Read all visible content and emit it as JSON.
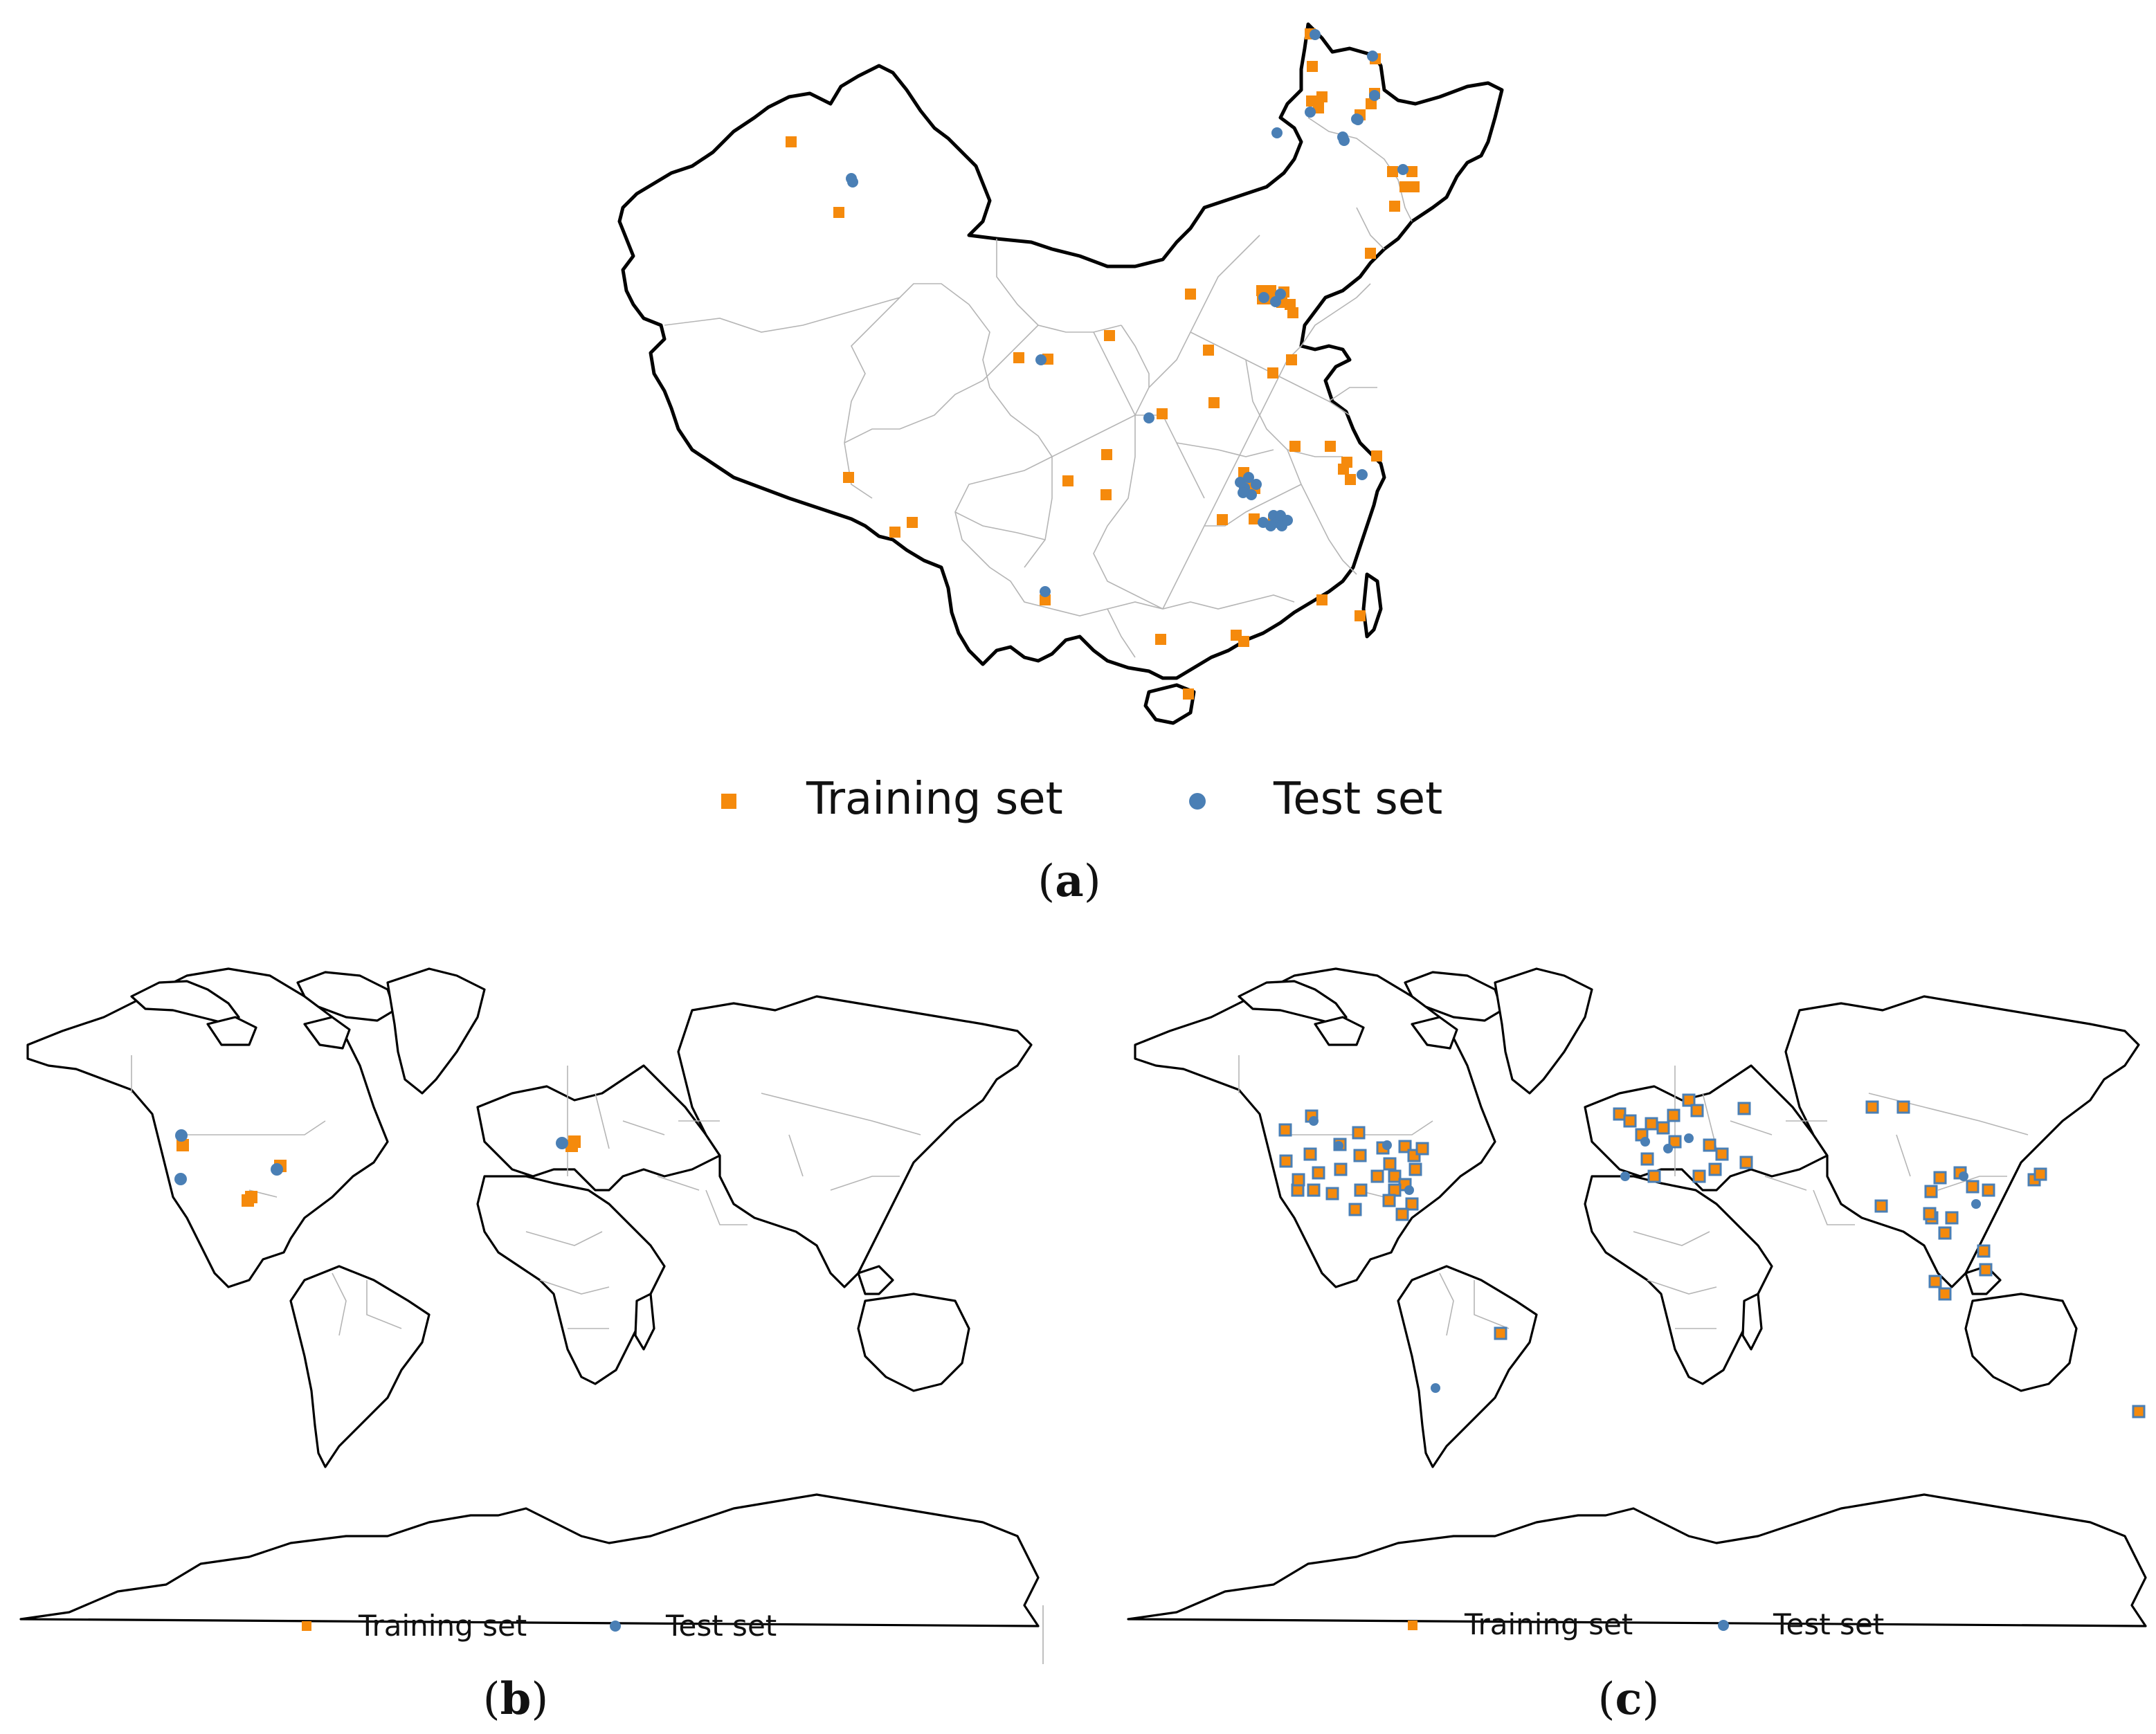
{
  "colors": {
    "training": "#f58a0c",
    "test": "#4a7fb5",
    "coast": "#000000",
    "border": "#b5b5b5"
  },
  "panels": [
    {
      "id": "a",
      "caption": "a",
      "legend": {
        "training_label": "Training set",
        "test_label": "Test set",
        "training_marker": "square",
        "test_marker": "circle"
      },
      "training": [
        [
          1143,
          205
        ],
        [
          1212,
          307
        ],
        [
          1893,
          49
        ],
        [
          1896,
          96
        ],
        [
          1895,
          146
        ],
        [
          1905,
          156
        ],
        [
          1910,
          140
        ],
        [
          1987,
          85
        ],
        [
          1965,
          166
        ],
        [
          1981,
          150
        ],
        [
          1986,
          135
        ],
        [
          2012,
          248
        ],
        [
          2040,
          248
        ],
        [
          2030,
          270
        ],
        [
          2043,
          270
        ],
        [
          2015,
          298
        ],
        [
          1980,
          366
        ],
        [
          1720,
          425
        ],
        [
          1823,
          420
        ],
        [
          1824,
          432
        ],
        [
          1836,
          420
        ],
        [
          1840,
          432
        ],
        [
          1855,
          422
        ],
        [
          1852,
          437
        ],
        [
          1868,
          452
        ],
        [
          1864,
          440
        ],
        [
          1603,
          485
        ],
        [
          1472,
          517
        ],
        [
          1514,
          519
        ],
        [
          1746,
          506
        ],
        [
          1866,
          520
        ],
        [
          1839,
          539
        ],
        [
          1754,
          582
        ],
        [
          1679,
          598
        ],
        [
          1871,
          645
        ],
        [
          1922,
          645
        ],
        [
          1946,
          668
        ],
        [
          1941,
          678
        ],
        [
          1951,
          693
        ],
        [
          1989,
          659
        ],
        [
          1599,
          657
        ],
        [
          1797,
          683
        ],
        [
          1803,
          698
        ],
        [
          1813,
          706
        ],
        [
          1543,
          695
        ],
        [
          1598,
          715
        ],
        [
          1226,
          690
        ],
        [
          1318,
          755
        ],
        [
          1293,
          769
        ],
        [
          1766,
          751
        ],
        [
          1812,
          750
        ],
        [
          1840,
          752
        ],
        [
          1510,
          867
        ],
        [
          1677,
          924
        ],
        [
          1786,
          918
        ],
        [
          1797,
          927
        ],
        [
          1910,
          867
        ],
        [
          1965,
          890
        ],
        [
          1717,
          1003
        ]
      ],
      "test": [
        [
          1900,
          50
        ],
        [
          1983,
          81
        ],
        [
          1986,
          138
        ],
        [
          1893,
          162
        ],
        [
          1962,
          173
        ],
        [
          1845,
          192
        ],
        [
          1940,
          198
        ],
        [
          1942,
          203
        ],
        [
          1960,
          172
        ],
        [
          2027,
          245
        ],
        [
          1230,
          258
        ],
        [
          1232,
          263
        ],
        [
          1826,
          430
        ],
        [
          1843,
          436
        ],
        [
          1850,
          425
        ],
        [
          1504,
          520
        ],
        [
          1660,
          604
        ],
        [
          1792,
          697
        ],
        [
          1798,
          705
        ],
        [
          1808,
          715
        ],
        [
          1796,
          712
        ],
        [
          1815,
          700
        ],
        [
          1804,
          690
        ],
        [
          1840,
          745
        ],
        [
          1845,
          755
        ],
        [
          1852,
          760
        ],
        [
          1836,
          760
        ],
        [
          1860,
          752
        ],
        [
          1825,
          755
        ],
        [
          1850,
          745
        ],
        [
          1968,
          686
        ],
        [
          1510,
          855
        ]
      ]
    },
    {
      "id": "b",
      "caption": "b",
      "legend": {
        "training_label": "Training set",
        "test_label": "Test set",
        "training_marker": "square",
        "test_marker": "circle"
      },
      "training": [
        [
          264,
          1655
        ],
        [
          405,
          1685
        ],
        [
          358,
          1735
        ],
        [
          363,
          1730
        ],
        [
          830,
          1650
        ],
        [
          826,
          1656
        ]
      ],
      "test": [
        [
          262,
          1641
        ],
        [
          261,
          1704
        ],
        [
          400,
          1690
        ],
        [
          812,
          1652
        ]
      ]
    },
    {
      "id": "c",
      "caption": "c",
      "legend": {
        "training_label": "Training set",
        "test_label": "Test set",
        "training_marker": "square",
        "test_marker": "circle"
      },
      "training": [
        [
          1857,
          1633
        ],
        [
          1895,
          1613
        ],
        [
          1893,
          1668
        ],
        [
          1936,
          1654
        ],
        [
          1963,
          1637
        ],
        [
          1858,
          1678
        ],
        [
          1905,
          1695
        ],
        [
          1937,
          1690
        ],
        [
          1965,
          1670
        ],
        [
          1998,
          1659
        ],
        [
          1966,
          1720
        ],
        [
          2008,
          1682
        ],
        [
          2030,
          1657
        ],
        [
          2043,
          1670
        ],
        [
          2055,
          1660
        ],
        [
          1990,
          1700
        ],
        [
          2015,
          1700
        ],
        [
          2030,
          1712
        ],
        [
          2045,
          1690
        ],
        [
          2015,
          1720
        ],
        [
          2040,
          1740
        ],
        [
          2026,
          1755
        ],
        [
          1958,
          1748
        ],
        [
          2007,
          1735
        ],
        [
          1875,
          1720
        ],
        [
          1898,
          1720
        ],
        [
          1925,
          1725
        ],
        [
          1876,
          1705
        ],
        [
          2340,
          1610
        ],
        [
          2355,
          1620
        ],
        [
          2372,
          1640
        ],
        [
          2386,
          1624
        ],
        [
          2403,
          1630
        ],
        [
          2418,
          1612
        ],
        [
          2440,
          1590
        ],
        [
          2452,
          1605
        ],
        [
          2420,
          1650
        ],
        [
          2380,
          1675
        ],
        [
          2470,
          1655
        ],
        [
          2488,
          1668
        ],
        [
          2520,
          1602
        ],
        [
          2390,
          1700
        ],
        [
          2455,
          1700
        ],
        [
          2478,
          1690
        ],
        [
          2523,
          1680
        ],
        [
          2705,
          1600
        ],
        [
          2750,
          1600
        ],
        [
          2718,
          1743
        ],
        [
          2790,
          1722
        ],
        [
          2803,
          1702
        ],
        [
          2832,
          1695
        ],
        [
          2850,
          1715
        ],
        [
          2791,
          1760
        ],
        [
          2820,
          1760
        ],
        [
          2873,
          1720
        ],
        [
          2939,
          1705
        ],
        [
          2948,
          1697
        ],
        [
          2788,
          1754
        ],
        [
          2810,
          1782
        ],
        [
          2866,
          1808
        ],
        [
          2869,
          1835
        ],
        [
          2796,
          1852
        ],
        [
          2810,
          1870
        ],
        [
          2168,
          1927
        ],
        [
          3090,
          2040
        ]
      ],
      "test": [
        [
          1898,
          1620
        ],
        [
          1934,
          1656
        ],
        [
          2004,
          1655
        ],
        [
          2036,
          1720
        ],
        [
          2377,
          1650
        ],
        [
          2410,
          1660
        ],
        [
          2440,
          1645
        ],
        [
          2837,
          1700
        ],
        [
          2855,
          1740
        ],
        [
          2074,
          2006
        ],
        [
          2348,
          1700
        ]
      ]
    }
  ]
}
